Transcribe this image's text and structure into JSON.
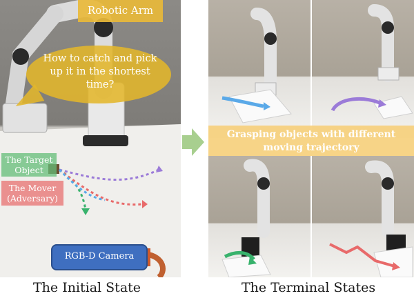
{
  "left_panel": {
    "title": "Robotic Arm",
    "question": "How to catch and pick up it in the shortest time?",
    "target_label": "The Target Object",
    "mover_label": "The Mover (Adversary)",
    "camera_label": "RGB-D Camera",
    "caption": "The Initial State"
  },
  "right_panel": {
    "banner": "Grasping objects with different moving trajectory",
    "caption": "The Terminal States"
  },
  "colors": {
    "title_bg": "#e8b93a",
    "bubble_bg": "#e2b62b",
    "target_green": "#38b26c",
    "mover_red": "#e86a6a",
    "purple": "#9b7bd8",
    "blue_arrow": "#5aa9e8",
    "camera_blue": "#3f6fc0",
    "transition_arrow": "#a8cf8f"
  },
  "icons": [
    "robot-arm-icon",
    "camera-icon",
    "right-arrow-icon"
  ]
}
